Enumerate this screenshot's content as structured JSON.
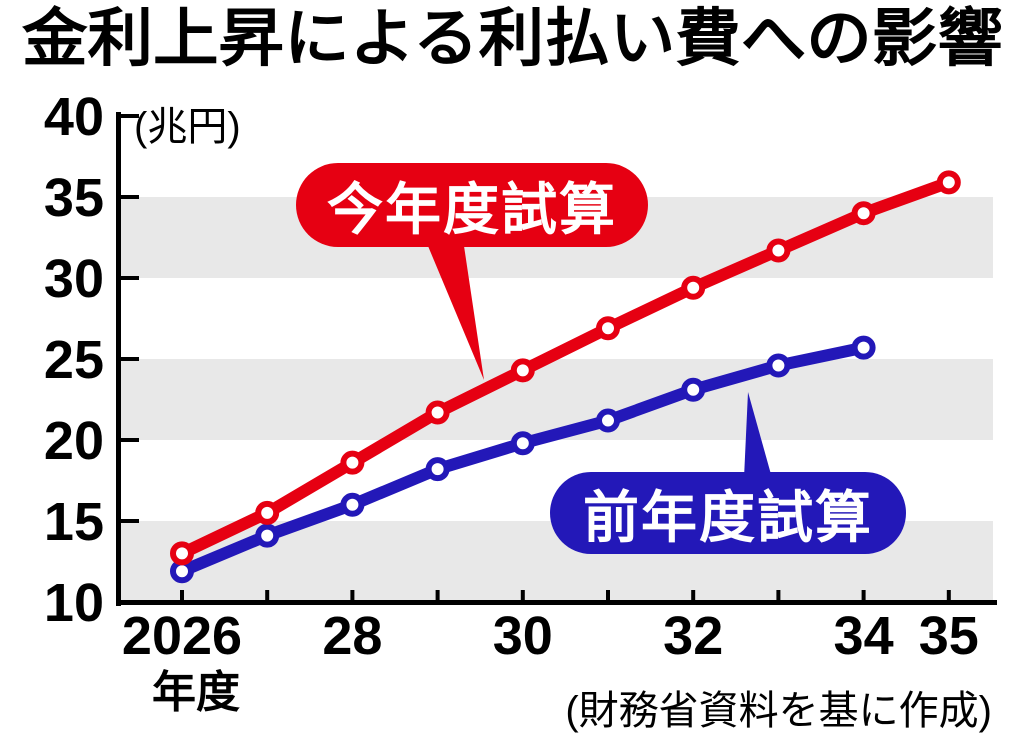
{
  "chart_data": {
    "type": "line",
    "title": "金利上昇による利払い費への影響",
    "unit_label": "(兆円)",
    "x_axis_suffix": "年度",
    "source": "(財務省資料を基に作成)",
    "ylim": [
      10,
      40
    ],
    "y_ticks": [
      10,
      15,
      20,
      25,
      30,
      35,
      40
    ],
    "x_ticks": [
      2026,
      2027,
      2028,
      2029,
      2030,
      2031,
      2032,
      2033,
      2034,
      2035
    ],
    "x_tick_labels": [
      {
        "x": 2026,
        "label": "2026"
      },
      {
        "x": 2028,
        "label": "28"
      },
      {
        "x": 2030,
        "label": "30"
      },
      {
        "x": 2032,
        "label": "32"
      },
      {
        "x": 2034,
        "label": "34"
      },
      {
        "x": 2035,
        "label": "35"
      }
    ],
    "grid": "alternating horizontal shaded bands (10-15, 20-25, 30-35)",
    "legend_position": "callout bubbles inside plot",
    "band_color": "#e8e8e8",
    "axis_color": "#000000",
    "series": [
      {
        "name": "今年度試算",
        "color": "#e60012",
        "x": [
          2026,
          2027,
          2028,
          2029,
          2030,
          2031,
          2032,
          2033,
          2034,
          2035
        ],
        "values": [
          13.0,
          15.5,
          18.6,
          21.7,
          24.3,
          26.9,
          29.4,
          31.7,
          34.0,
          35.9
        ]
      },
      {
        "name": "前年度試算",
        "color": "#2318b8",
        "x": [
          2026,
          2027,
          2028,
          2029,
          2030,
          2031,
          2032,
          2033,
          2034
        ],
        "values": [
          11.9,
          14.1,
          16.0,
          18.2,
          19.8,
          21.2,
          23.1,
          24.6,
          25.7
        ]
      }
    ]
  }
}
